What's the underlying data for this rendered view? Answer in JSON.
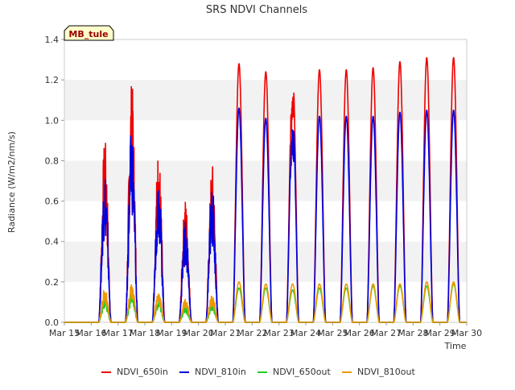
{
  "chart_data": {
    "type": "line",
    "title": "SRS NDVI Channels",
    "xlabel": "Time",
    "ylabel": "Radiance (W/m2/nm/s)",
    "annotation": "MB_tule",
    "ylim": [
      0.0,
      1.4
    ],
    "xlim": [
      "2024-03-15",
      "2024-03-30"
    ],
    "yticks": [
      "0.0",
      "0.2",
      "0.4",
      "0.6",
      "0.8",
      "1.0",
      "1.2",
      "1.4"
    ],
    "xticks": [
      "Mar 15",
      "Mar 16",
      "Mar 17",
      "Mar 18",
      "Mar 19",
      "Mar 20",
      "Mar 21",
      "Mar 22",
      "Mar 23",
      "Mar 24",
      "Mar 25",
      "Mar 26",
      "Mar 27",
      "Mar 28",
      "Mar 29",
      "Mar 30"
    ],
    "grid": "horizontal bands",
    "legend_position": "bottom",
    "days": [
      "Mar 15",
      "Mar 16",
      "Mar 17",
      "Mar 18",
      "Mar 19",
      "Mar 20",
      "Mar 21",
      "Mar 22",
      "Mar 23",
      "Mar 24",
      "Mar 25",
      "Mar 26",
      "Mar 27",
      "Mar 28",
      "Mar 29"
    ],
    "series": [
      {
        "name": "NDVI_650in",
        "color": "#ee0000",
        "daily_peak": [
          0.0,
          0.91,
          1.2,
          0.86,
          0.62,
          0.79,
          1.28,
          1.24,
          1.23,
          1.25,
          1.25,
          1.26,
          1.29,
          1.31,
          1.31
        ]
      },
      {
        "name": "NDVI_810in",
        "color": "#0000dd",
        "daily_peak": [
          0.0,
          0.77,
          0.98,
          0.75,
          0.52,
          0.68,
          1.06,
          1.01,
          1.02,
          1.02,
          1.02,
          1.02,
          1.04,
          1.05,
          1.05
        ]
      },
      {
        "name": "NDVI_650out",
        "color": "#22cc22",
        "daily_peak": [
          0.0,
          0.12,
          0.15,
          0.12,
          0.08,
          0.1,
          0.17,
          0.17,
          0.16,
          0.17,
          0.17,
          0.18,
          0.18,
          0.18,
          0.19
        ]
      },
      {
        "name": "NDVI_810out",
        "color": "#ee9900",
        "daily_peak": [
          0.0,
          0.17,
          0.19,
          0.16,
          0.12,
          0.14,
          0.2,
          0.19,
          0.19,
          0.19,
          0.19,
          0.19,
          0.19,
          0.2,
          0.2
        ]
      }
    ]
  }
}
